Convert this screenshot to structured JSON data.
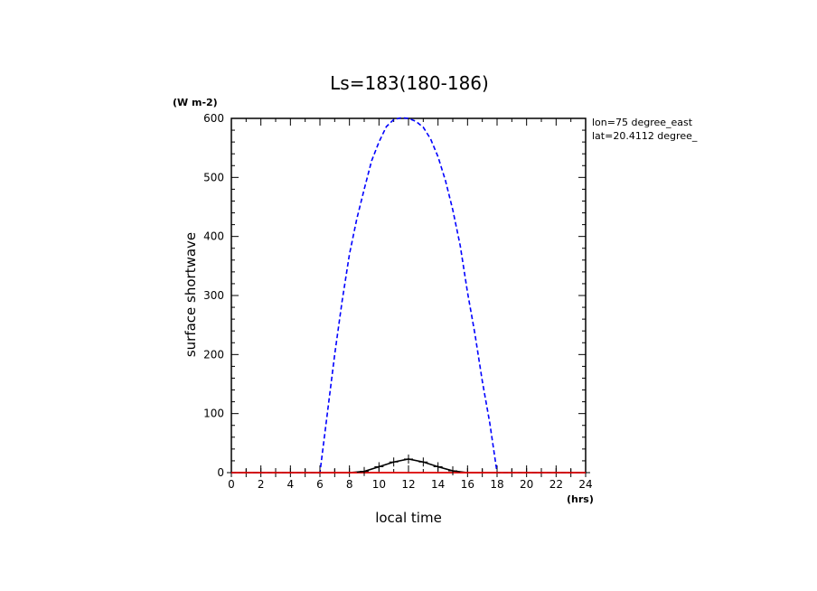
{
  "chart_data": {
    "type": "line",
    "title": "Ls=183(180-186)",
    "xlabel": "local time",
    "x_unit": "(hrs)",
    "ylabel": "surface shortwave",
    "y_unit": "(W m-2)",
    "annotations": [
      "lon=75 degree_east",
      "lat=20.4112 degree_"
    ],
    "xlim": [
      0,
      24
    ],
    "ylim": [
      0,
      600
    ],
    "x_ticks": [
      0,
      2,
      4,
      6,
      8,
      10,
      12,
      14,
      16,
      18,
      20,
      22,
      24
    ],
    "y_ticks": [
      0,
      100,
      200,
      300,
      400,
      500,
      600
    ],
    "grid": false,
    "series": [
      {
        "style": "dashed",
        "color": "#0000ff",
        "x": [
          0,
          1,
          2,
          3,
          4,
          5,
          6,
          6.5,
          7,
          7.5,
          8,
          8.5,
          9,
          9.5,
          10,
          10.5,
          11,
          11.5,
          12,
          12.5,
          13,
          13.5,
          14,
          14.5,
          15,
          15.5,
          16,
          16.5,
          17,
          17.5,
          18,
          19,
          20,
          21,
          22,
          23,
          24
        ],
        "y": [
          0,
          0,
          0,
          0,
          0,
          0,
          0,
          100,
          200,
          290,
          370,
          430,
          480,
          528,
          560,
          586,
          598,
          601,
          600,
          595,
          585,
          565,
          535,
          495,
          445,
          385,
          305,
          235,
          155,
          85,
          0,
          0,
          0,
          0,
          0,
          0,
          0
        ]
      },
      {
        "style": "solid",
        "color": "#ff0000",
        "x": [
          0,
          24
        ],
        "y": [
          0,
          0
        ]
      },
      {
        "style": "solid-crosses",
        "color": "#000000",
        "x": [
          0,
          1,
          2,
          3,
          4,
          5,
          6,
          7,
          8,
          9,
          10,
          11,
          12,
          13,
          14,
          15,
          16,
          17,
          18,
          19,
          20,
          21,
          22,
          23,
          24
        ],
        "y": [
          0,
          0,
          0,
          0,
          0,
          0,
          0,
          0,
          0,
          2,
          10,
          18,
          23,
          18,
          10,
          3,
          0,
          0,
          0,
          0,
          0,
          0,
          0,
          0,
          0
        ]
      }
    ]
  }
}
